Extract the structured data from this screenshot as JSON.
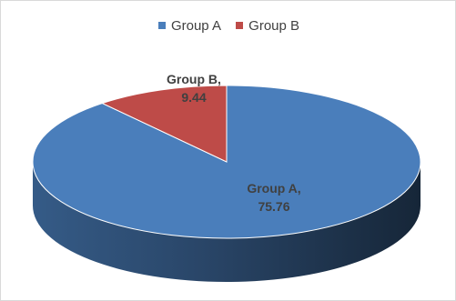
{
  "chart_data": {
    "type": "pie",
    "style": "3d",
    "title": "",
    "legend_position": "top",
    "slices": [
      {
        "name": "Group A",
        "value": 75.76,
        "color": "#4a7ebb",
        "label_line1": "Group A,",
        "label_line2": "75.76"
      },
      {
        "name": "Group B",
        "value": 9.44,
        "color": "#be4b48",
        "label_line1": "Group B,",
        "label_line2": "9.44"
      }
    ]
  }
}
